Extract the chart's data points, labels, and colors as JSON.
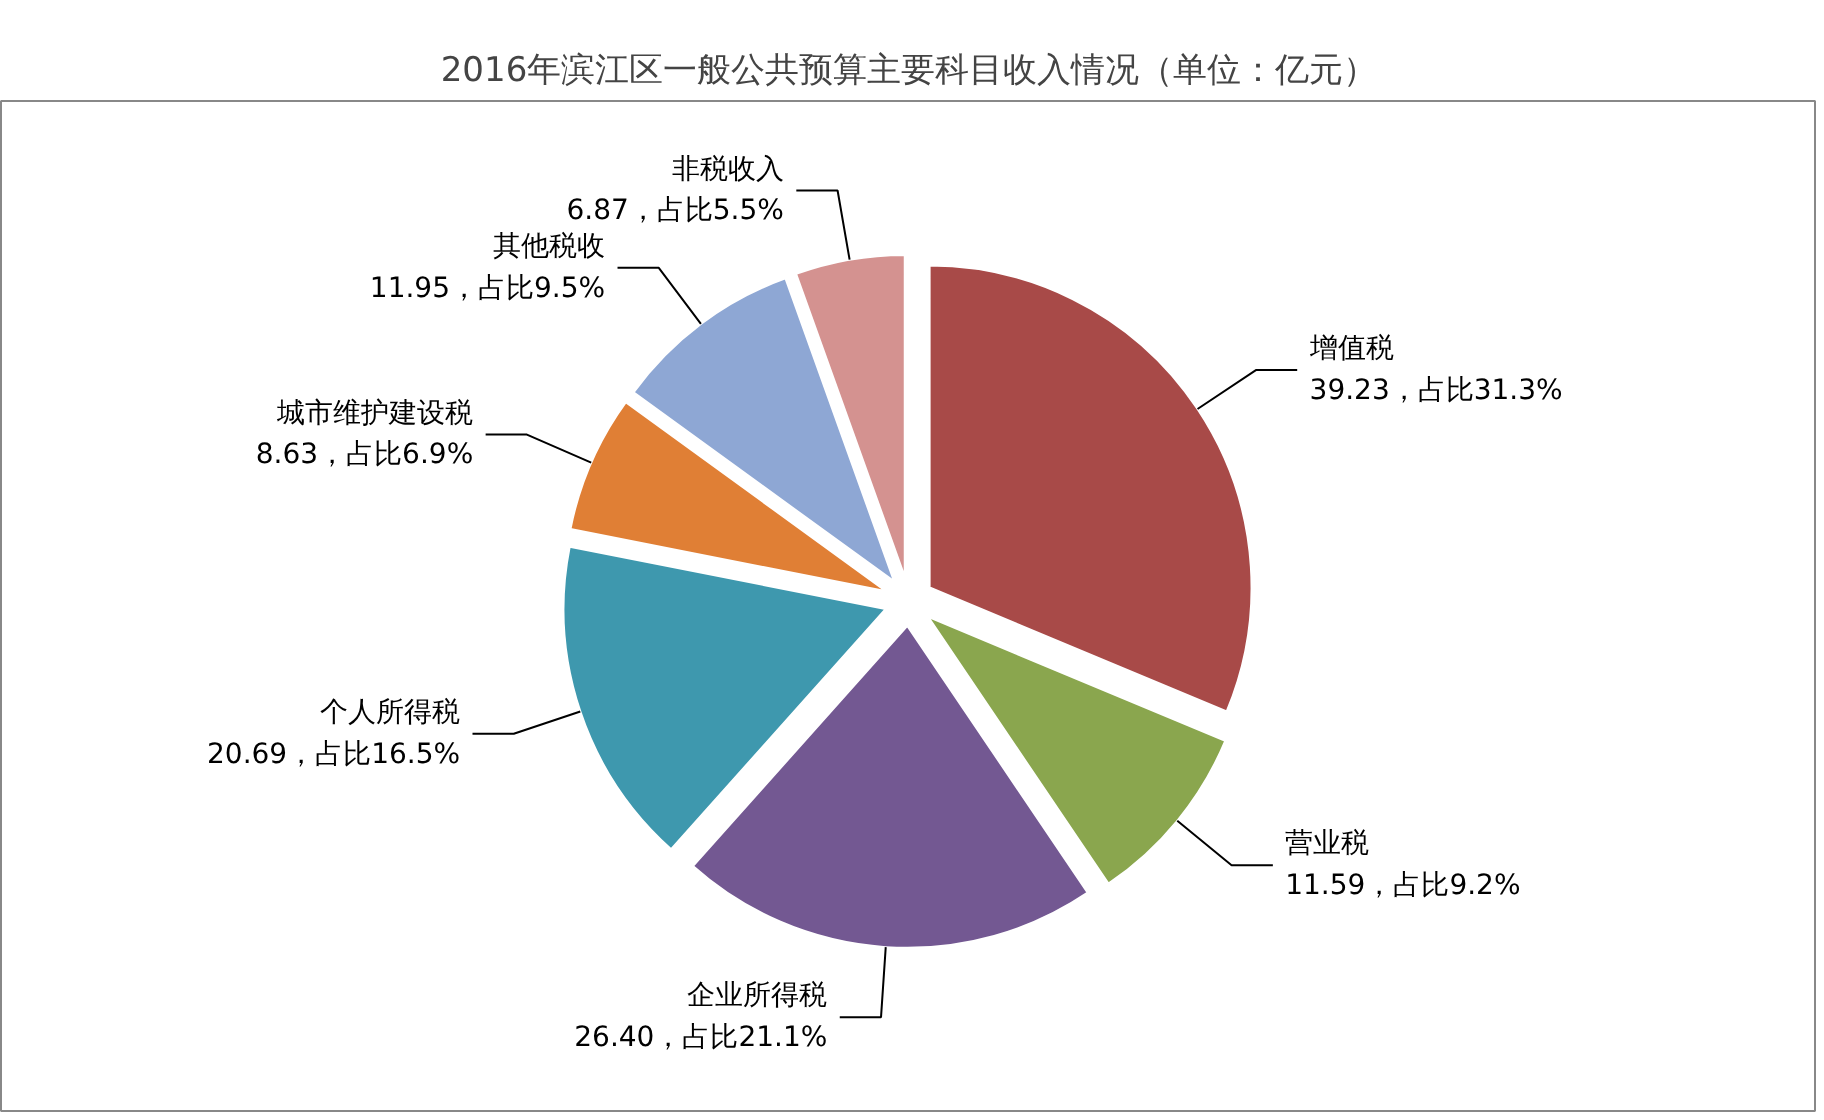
{
  "chart_data": {
    "type": "pie",
    "title": "2016年滨江区一般公共预算主要科目收入情况（单位：亿元）",
    "categories": [
      "增值税",
      "营业税",
      "企业所得税",
      "个人所得税",
      "城市维护建设税",
      "其他税收",
      "非税收入"
    ],
    "values": [
      39.23,
      11.59,
      26.4,
      20.69,
      8.63,
      11.95,
      6.87
    ],
    "value_labels": [
      "39.23，占比31.3%",
      "11.59，占比9.2%",
      "26.40，占比21.1%",
      "20.69，占比16.5%",
      "8.63，占比6.9%",
      "11.95，占比9.5%",
      "6.87，占比5.5%"
    ],
    "colors": [
      "#a84a48",
      "#8aa64e",
      "#735892",
      "#3e98ae",
      "#e07f35",
      "#8ea7d4",
      "#d49290"
    ]
  }
}
